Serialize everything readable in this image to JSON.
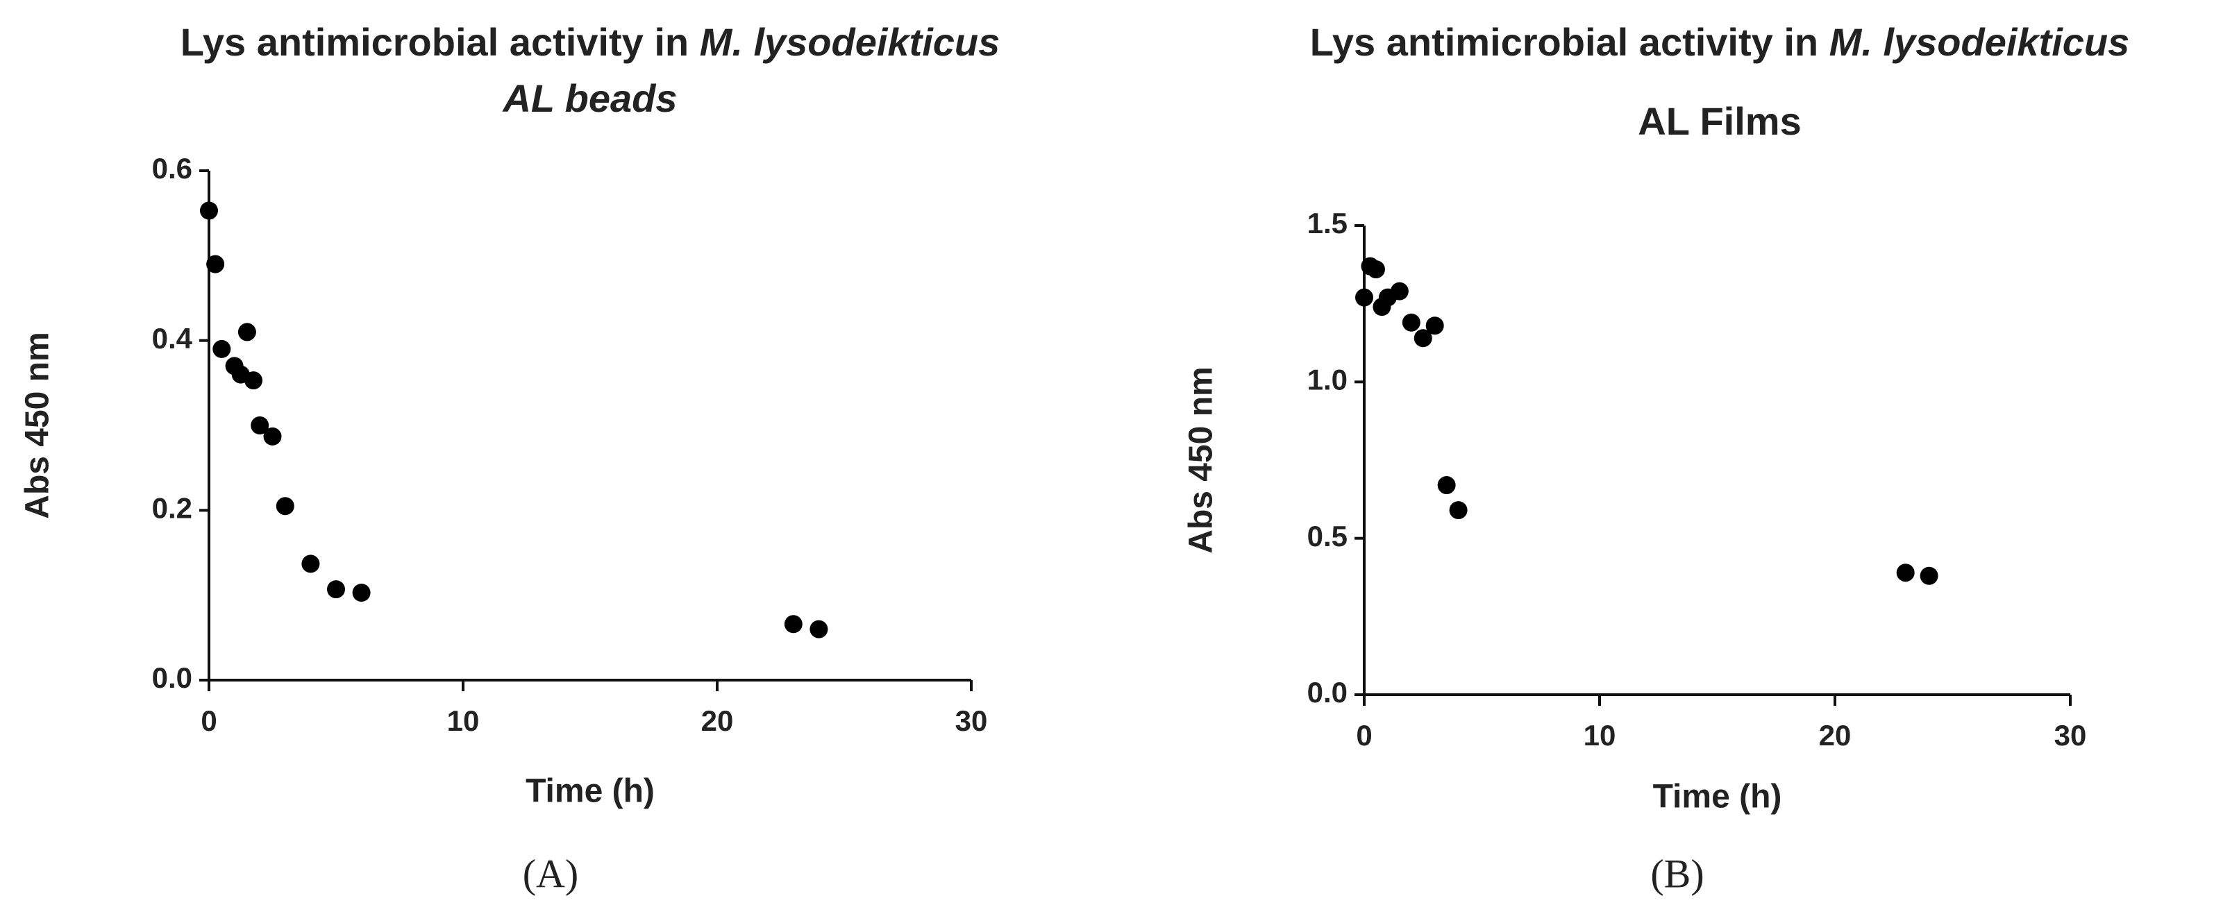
{
  "chart_data": [
    {
      "type": "scatter",
      "title": [
        "Lys antimicrobial activity in",
        "M. lysodeikticus"
      ],
      "subtitle": "AL beads",
      "x_label": "Time (h)",
      "y_label": "Abs 450 nm",
      "label": "(A)",
      "xlim": [
        0,
        30
      ],
      "xticks": [
        0,
        10,
        20,
        30
      ],
      "ylim": [
        0,
        0.6
      ],
      "yticks": [
        {
          "value": 0,
          "label": "0.0"
        },
        0.2,
        0.4,
        0.6
      ],
      "color": "#000000",
      "x": [
        0,
        0.25,
        0.5,
        1,
        1.25,
        1.5,
        1.75,
        2,
        2.5,
        3,
        4,
        5,
        6,
        23,
        24
      ],
      "values": [
        0.553,
        0.49,
        0.39,
        0.37,
        0.36,
        0.41,
        0.353,
        0.3,
        0.287,
        0.205,
        0.137,
        0.107,
        0.103,
        0.066,
        0.06
      ]
    },
    {
      "type": "scatter",
      "title": [
        "Lys antimicrobial activity in",
        "M. lysodeikticus"
      ],
      "subtitle": "AL Films",
      "x_label": "Time (h)",
      "y_label": "Abs 450 nm",
      "label": "(B)",
      "xlim": [
        0,
        30
      ],
      "xticks": [
        0,
        10,
        20,
        30
      ],
      "ylim": [
        0,
        1.5
      ],
      "yticks": [
        {
          "value": 0,
          "label": "0.0"
        },
        0.5,
        {
          "value": 1,
          "label": "1.0"
        },
        1.5
      ],
      "color": "#000000",
      "x": [
        0,
        0.25,
        0.5,
        0.75,
        1,
        1.5,
        2,
        2.5,
        3,
        3.5,
        4,
        23,
        24
      ],
      "values": [
        1.27,
        1.37,
        1.36,
        1.24,
        1.27,
        1.29,
        1.19,
        1.14,
        1.18,
        0.67,
        0.59,
        0.39,
        0.38
      ]
    }
  ]
}
